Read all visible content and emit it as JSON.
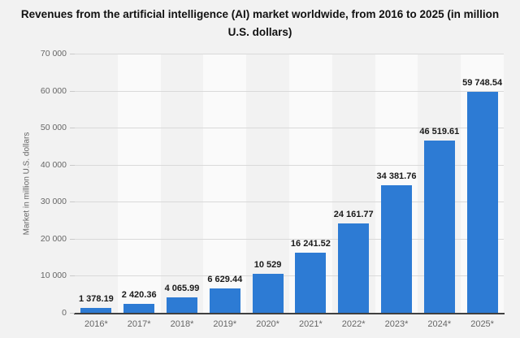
{
  "title": "Revenues from the artificial intelligence (AI) market worldwide, from 2016 to 2025 (in million U.S. dollars)",
  "chart_data": {
    "type": "bar",
    "categories": [
      "2016*",
      "2017*",
      "2018*",
      "2019*",
      "2020*",
      "2021*",
      "2022*",
      "2023*",
      "2024*",
      "2025*"
    ],
    "values": [
      1378.19,
      2420.36,
      4065.99,
      6629.44,
      10529,
      16241.52,
      24161.77,
      34381.76,
      46519.61,
      59748.54
    ],
    "value_labels": [
      "1 378.19",
      "2 420.36",
      "4 065.99",
      "6 629.44",
      "10 529",
      "16 241.52",
      "24 161.77",
      "34 381.76",
      "46 519.61",
      "59 748.54"
    ],
    "title": "Revenues from the artificial intelligence (AI) market worldwide, from 2016 to 2025 (in million U.S. dollars)",
    "xlabel": "",
    "ylabel": "Market in million U.S. dollars",
    "ylim": [
      0,
      70000
    ],
    "ytick_interval": 10000,
    "ytick_labels": [
      "0",
      "10 000",
      "20 000",
      "30 000",
      "40 000",
      "50 000",
      "60 000",
      "70 000"
    ],
    "grid": true,
    "legend": "none",
    "colors": {
      "bar": "#2d7bd4",
      "band_alt": [
        "#f2f2f2",
        "#fafafa"
      ],
      "gridline": "#d9d9d9",
      "axis_line": "#404040",
      "tick_mark": "#c9c9c9",
      "axis_text": "#666666",
      "data_label_text": "#1a1a1a",
      "title_text": "#111111",
      "background": "#f2f2f2"
    }
  }
}
